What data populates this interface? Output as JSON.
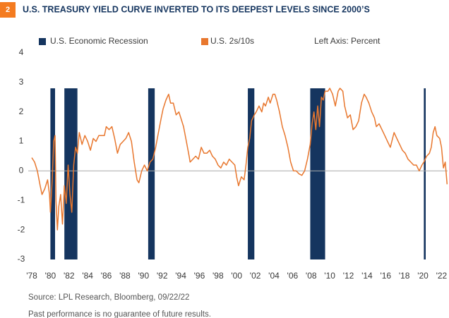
{
  "chart_data": {
    "type": "line",
    "badge": "2",
    "title": "U.S. TREASURY YIELD CURVE INVERTED TO ITS DEEPEST LEVELS SINCE 2000’S",
    "axis_note": "Left Axis: Percent",
    "source": "Source:  LPL Research, Bloomberg,  09/22/22",
    "footnote": "Past performance is no guarantee of future results.",
    "xlim": [
      1977.62,
      2022.65
    ],
    "ylim": [
      -3,
      4
    ],
    "yticks": [
      4,
      3,
      2,
      1,
      0,
      -1,
      -2,
      -3
    ],
    "xticks": [
      {
        "value": 1978,
        "label": "'78"
      },
      {
        "value": 1980,
        "label": "'80"
      },
      {
        "value": 1982,
        "label": "'82"
      },
      {
        "value": 1984,
        "label": "'84"
      },
      {
        "value": 1986,
        "label": "'86"
      },
      {
        "value": 1988,
        "label": "'88"
      },
      {
        "value": 1990,
        "label": "'90"
      },
      {
        "value": 1992,
        "label": "'92"
      },
      {
        "value": 1994,
        "label": "'94"
      },
      {
        "value": 1996,
        "label": "'96"
      },
      {
        "value": 1998,
        "label": "'98"
      },
      {
        "value": 2000,
        "label": "'00"
      },
      {
        "value": 2002,
        "label": "'02"
      },
      {
        "value": 2004,
        "label": "'04"
      },
      {
        "value": 2006,
        "label": "'06"
      },
      {
        "value": 2008,
        "label": "'08"
      },
      {
        "value": 2010,
        "label": "'10"
      },
      {
        "value": 2012,
        "label": "'12"
      },
      {
        "value": 2014,
        "label": "'14"
      },
      {
        "value": 2016,
        "label": "'16"
      },
      {
        "value": 2018,
        "label": "'18"
      },
      {
        "value": 2020,
        "label": "'20"
      },
      {
        "value": 2022,
        "label": "'22"
      }
    ],
    "zero_line": true,
    "recession": {
      "name": "U.S. Economic Recession",
      "color": "#15355f",
      "top": 2.8,
      "periods": [
        [
          1980.0,
          1980.5
        ],
        [
          1981.5,
          1982.9
        ],
        [
          1990.5,
          1991.2
        ],
        [
          2001.2,
          2001.9
        ],
        [
          2007.9,
          2009.5
        ],
        [
          2020.1,
          2020.3
        ]
      ]
    },
    "series": [
      {
        "name": "U.S. 2s/10s",
        "color": "#e8772e",
        "x": [
          1978.0,
          1978.3,
          1978.6,
          1978.9,
          1979.1,
          1979.4,
          1979.7,
          1979.9,
          1980.0,
          1980.2,
          1980.35,
          1980.5,
          1980.6,
          1980.75,
          1980.9,
          1981.1,
          1981.3,
          1981.5,
          1981.7,
          1981.9,
          1982.1,
          1982.3,
          1982.5,
          1982.7,
          1982.9,
          1983.1,
          1983.4,
          1983.7,
          1984.0,
          1984.3,
          1984.6,
          1984.9,
          1985.2,
          1985.5,
          1985.8,
          1986.0,
          1986.3,
          1986.6,
          1986.9,
          1987.2,
          1987.5,
          1987.8,
          1988.1,
          1988.4,
          1988.7,
          1989.0,
          1989.3,
          1989.5,
          1989.8,
          1990.1,
          1990.4,
          1990.7,
          1991.0,
          1991.3,
          1991.6,
          1991.9,
          1992.1,
          1992.4,
          1992.7,
          1992.9,
          1993.2,
          1993.5,
          1993.8,
          1994.0,
          1994.3,
          1994.6,
          1994.9,
          1995.0,
          1995.3,
          1995.6,
          1995.9,
          1996.2,
          1996.5,
          1996.8,
          1997.1,
          1997.4,
          1997.7,
          1998.0,
          1998.3,
          1998.6,
          1998.9,
          1999.2,
          1999.5,
          1999.8,
          2000.0,
          2000.2,
          2000.5,
          2000.8,
          2001.0,
          2001.2,
          2001.4,
          2001.6,
          2001.9,
          2002.1,
          2002.4,
          2002.7,
          2002.9,
          2003.1,
          2003.4,
          2003.6,
          2003.9,
          2004.1,
          2004.3,
          2004.6,
          2004.9,
          2005.2,
          2005.5,
          2005.8,
          2006.1,
          2006.4,
          2006.7,
          2007.0,
          2007.3,
          2007.6,
          2007.9,
          2008.1,
          2008.3,
          2008.5,
          2008.7,
          2008.9,
          2009.1,
          2009.3,
          2009.5,
          2009.8,
          2010.0,
          2010.3,
          2010.6,
          2010.9,
          2011.1,
          2011.4,
          2011.6,
          2011.9,
          2012.2,
          2012.5,
          2012.8,
          2013.1,
          2013.4,
          2013.7,
          2013.9,
          2014.2,
          2014.5,
          2014.8,
          2015.0,
          2015.3,
          2015.6,
          2015.9,
          2016.2,
          2016.5,
          2016.9,
          2017.2,
          2017.5,
          2017.8,
          2018.1,
          2018.4,
          2018.7,
          2019.0,
          2019.3,
          2019.6,
          2019.9,
          2020.1,
          2020.4,
          2020.7,
          2020.9,
          2021.1,
          2021.3,
          2021.5,
          2021.8,
          2022.0,
          2022.2,
          2022.4,
          2022.6
        ],
        "values": [
          0.45,
          0.3,
          0.0,
          -0.5,
          -0.8,
          -0.6,
          -0.3,
          -0.8,
          -1.4,
          -0.3,
          1.0,
          1.2,
          -1.0,
          -2.0,
          -1.2,
          -0.8,
          -1.8,
          -0.5,
          -1.1,
          0.2,
          -0.8,
          -1.4,
          0.2,
          0.8,
          0.6,
          1.3,
          0.9,
          1.2,
          1.0,
          0.7,
          1.1,
          1.0,
          1.2,
          1.2,
          1.2,
          1.5,
          1.4,
          1.5,
          1.1,
          0.6,
          0.9,
          1.0,
          1.1,
          1.3,
          1.0,
          0.3,
          -0.3,
          -0.4,
          0.0,
          0.2,
          0.0,
          0.3,
          0.4,
          0.8,
          1.3,
          1.8,
          2.1,
          2.4,
          2.6,
          2.3,
          2.3,
          1.9,
          2.0,
          1.8,
          1.5,
          1.0,
          0.5,
          0.3,
          0.4,
          0.5,
          0.4,
          0.8,
          0.6,
          0.6,
          0.7,
          0.5,
          0.4,
          0.2,
          0.1,
          0.3,
          0.2,
          0.4,
          0.3,
          0.2,
          -0.2,
          -0.5,
          -0.2,
          -0.3,
          0.2,
          0.8,
          1.1,
          1.7,
          1.9,
          2.0,
          2.2,
          2.0,
          2.3,
          2.2,
          2.5,
          2.3,
          2.6,
          2.6,
          2.4,
          2.0,
          1.5,
          1.2,
          0.8,
          0.3,
          0.0,
          0.0,
          -0.1,
          -0.15,
          0.0,
          0.4,
          0.9,
          1.6,
          2.0,
          1.4,
          2.2,
          1.5,
          2.5,
          2.4,
          2.7,
          2.7,
          2.8,
          2.6,
          2.2,
          2.7,
          2.8,
          2.7,
          2.2,
          1.8,
          1.9,
          1.4,
          1.5,
          1.7,
          2.3,
          2.6,
          2.5,
          2.3,
          2.0,
          1.8,
          1.5,
          1.6,
          1.4,
          1.2,
          1.0,
          0.8,
          1.3,
          1.1,
          0.9,
          0.7,
          0.6,
          0.4,
          0.3,
          0.2,
          0.2,
          0.0,
          0.2,
          0.3,
          0.5,
          0.6,
          0.8,
          1.3,
          1.5,
          1.2,
          1.1,
          0.8,
          0.1,
          0.3,
          -0.45
        ]
      }
    ]
  }
}
